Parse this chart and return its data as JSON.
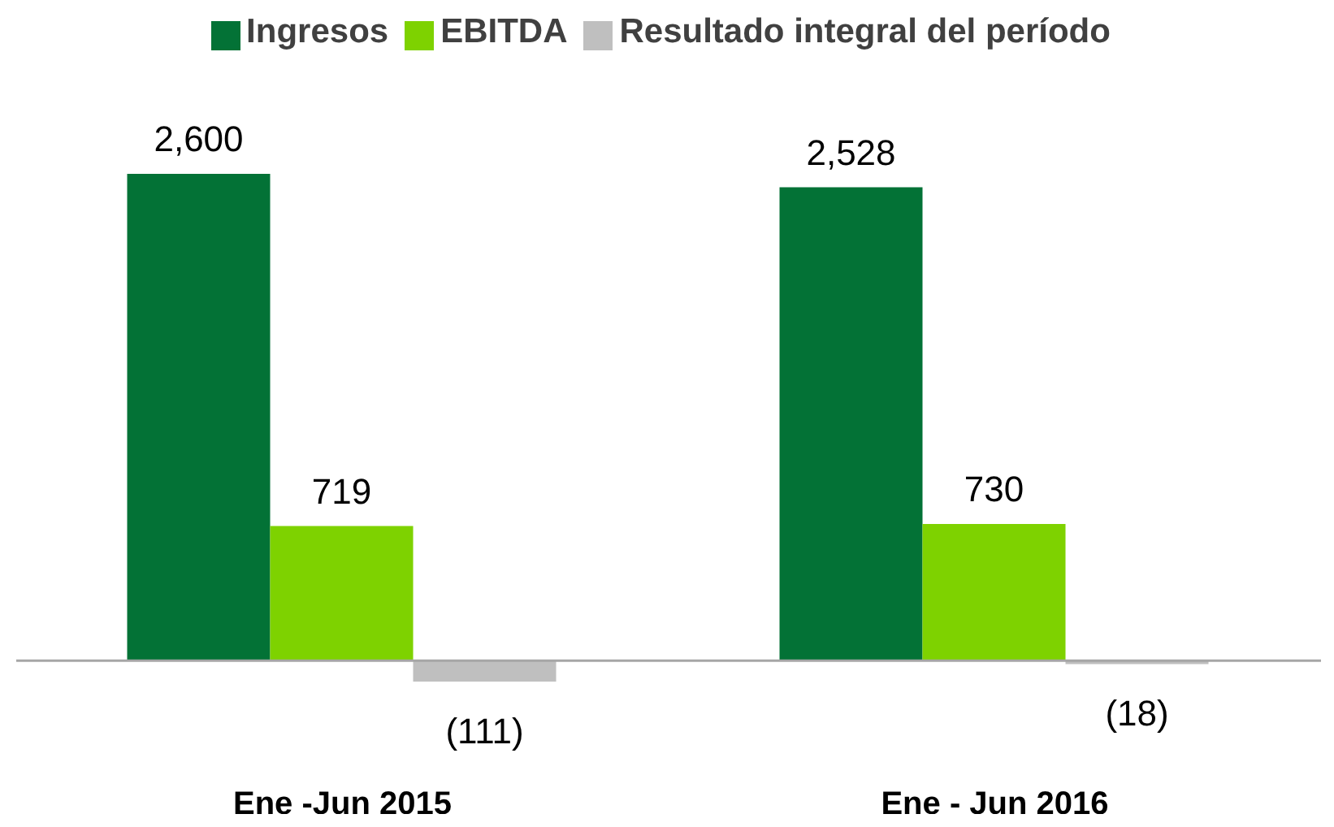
{
  "chart_data": {
    "type": "bar",
    "categories": [
      "Ene -Jun 2015",
      "Ene - Jun 2016"
    ],
    "series": [
      {
        "name": "Ingresos",
        "color": "#037236",
        "values": [
          2600,
          2528
        ],
        "value_labels": [
          "2,600",
          "2,528"
        ]
      },
      {
        "name": "EBITDA",
        "color": "#7ed200",
        "values": [
          719,
          730
        ],
        "value_labels": [
          "719",
          "730"
        ]
      },
      {
        "name": "Resultado integral del período",
        "color": "#bfbfbf",
        "values": [
          -111,
          -18
        ],
        "value_labels": [
          "(111)",
          "(18)"
        ]
      }
    ],
    "legend": "top"
  }
}
